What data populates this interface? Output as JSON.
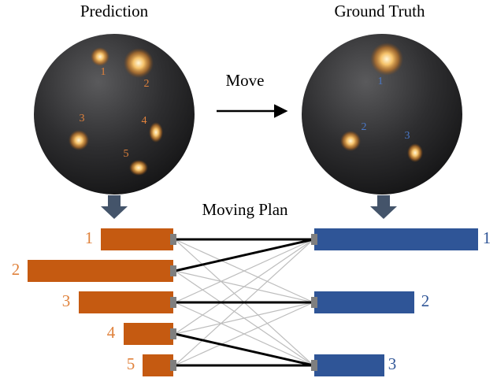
{
  "header": {
    "prediction": "Prediction",
    "ground_truth": "Ground Truth",
    "move": "Move",
    "moving_plan": "Moving Plan"
  },
  "prediction_sphere_labels": [
    1,
    2,
    3,
    4,
    5
  ],
  "truth_sphere_labels": [
    1,
    2,
    3
  ],
  "prediction_bar_labels": [
    1,
    2,
    3,
    4,
    5
  ],
  "truth_bar_labels": [
    1,
    2,
    3
  ]
}
